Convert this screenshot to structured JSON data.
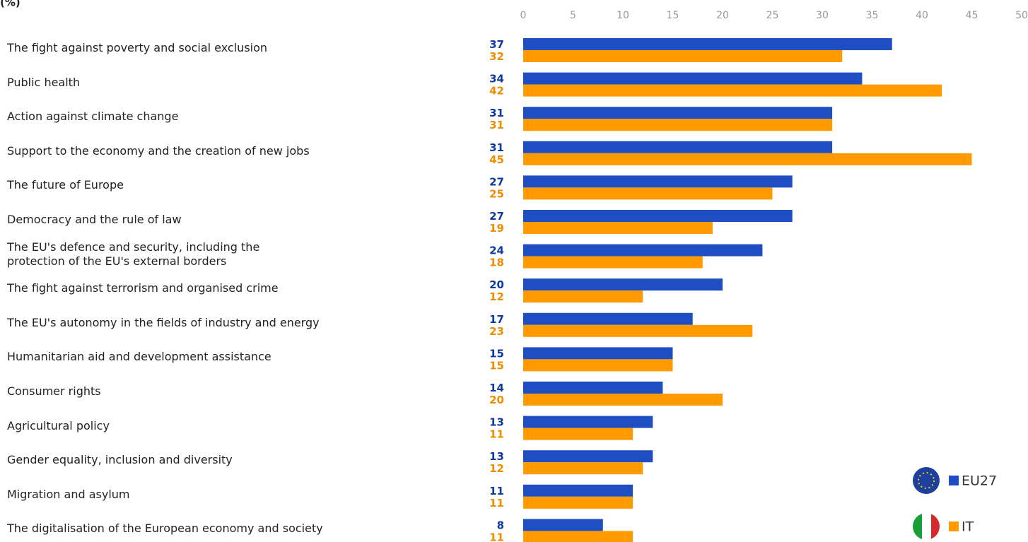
{
  "chart_data": {
    "type": "bar",
    "orientation": "horizontal",
    "title": "(%)",
    "categories": [
      "The fight against poverty and social exclusion",
      "Public health",
      "Action against climate change",
      "Support to the economy and the creation of new jobs",
      "The future of Europe",
      "Democracy and the rule of law",
      "The EU's defence and security, including the\nprotection of the EU's external borders",
      "The fight against terrorism and organised crime",
      "The EU's autonomy in the fields of industry and energy",
      "Humanitarian aid and development assistance",
      "Consumer rights",
      "Agricultural policy",
      "Gender equality, inclusion and diversity",
      "Migration and asylum",
      "The digitalisation of the European economy and society"
    ],
    "series": [
      {
        "name": "EU27",
        "color": "#1f4ec2",
        "label_color": "#0d3a9e",
        "values": [
          37,
          34,
          31,
          31,
          27,
          27,
          24,
          20,
          17,
          15,
          14,
          13,
          13,
          11,
          8
        ]
      },
      {
        "name": "IT",
        "color": "#ff9b00",
        "label_color": "#f08c00",
        "values": [
          32,
          42,
          31,
          45,
          25,
          19,
          18,
          12,
          23,
          15,
          20,
          11,
          12,
          11,
          11
        ]
      }
    ],
    "xlim": [
      0,
      50
    ],
    "xticks": [
      0,
      5,
      10,
      15,
      20,
      25,
      30,
      35,
      40,
      45,
      50
    ],
    "grid": false,
    "legend": "bottom-right"
  }
}
